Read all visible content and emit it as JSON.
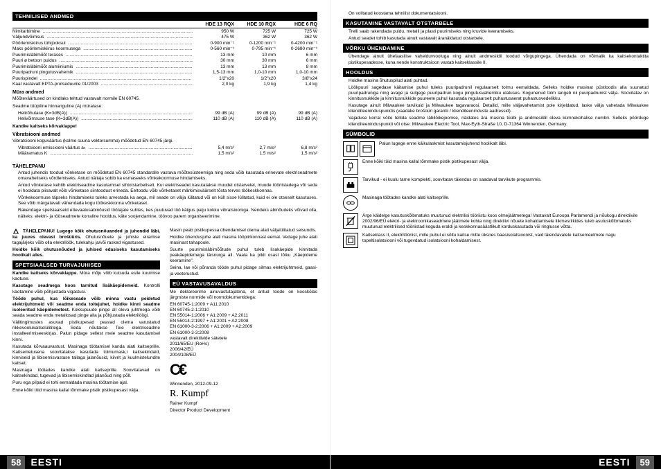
{
  "page_left_num": "58",
  "page_right_num": "59",
  "lang": "EESTI",
  "specs": {
    "header": "TEHNILISED ANDMED",
    "cols": [
      "HDE 13 RQX",
      "HDE 10 RQX",
      "HDE 6 RQ"
    ],
    "rows": [
      {
        "label": "Nimitarbimine",
        "vals": [
          "950 W",
          "725 W",
          "725 W"
        ]
      },
      {
        "label": "Väljundvõimsus",
        "vals": [
          "475 W",
          "362 W",
          "362 W"
        ]
      },
      {
        "label": "Pöörlemiskiirus tühijooksul",
        "vals": [
          "0-900 min⁻¹",
          "0-1200 min⁻¹",
          "0-4200 min⁻¹"
        ]
      },
      {
        "label": "Maks pöörlemiskiirus koormusega",
        "vals": [
          "0-560 min⁻¹",
          "0-795 min⁻¹",
          "0-2680 min⁻¹"
        ]
      },
      {
        "label": "Puurimisläbimõõt terases",
        "vals": [
          "13 mm",
          "10 mm",
          "6 mm"
        ]
      },
      {
        "label": "Puuri ø betoon puidus",
        "vals": [
          "30 mm",
          "30 mm",
          "6 mm"
        ]
      },
      {
        "label": "Puurimisläbimõõt alumiiniumis",
        "vals": [
          "13 mm",
          "13 mm",
          "8 mm"
        ]
      },
      {
        "label": "Puuripadruni pingutusvahemik",
        "vals": [
          "1,5-13 mm",
          "1,0-10 mm",
          "1,0-10 mm"
        ]
      },
      {
        "label": "Puurispindel",
        "vals": [
          "1/2\"x20",
          "1/2\"x20",
          "3/8\"x24"
        ]
      },
      {
        "label": "Kaal vastavalt EPTA-protseduurile 01/2003",
        "vals": [
          "2,0 kg",
          "1,9 kg",
          "1,4 kg"
        ]
      }
    ],
    "noise_heading": "Müra andmed",
    "noise_text1": "Mõõteväärtused on kindlaks tehtud vastavalt normile EN 60745.",
    "noise_text2": "Seadme tüüpiline hinnanguline (A) müratase:",
    "noise_rows": [
      {
        "label": "Helirõhutase (K=3dB(A))",
        "vals": [
          "99 dB (A)",
          "99 dB (A)",
          "99 dB (A)"
        ]
      },
      {
        "label": "Helivõimsuse tase (K=3dB(A))",
        "vals": [
          "110 dB (A)",
          "110 dB (A)",
          "110 dB (A)"
        ]
      }
    ],
    "earprotect": "Kandke kaitseks kõrvaklappе!",
    "vib_heading": "Vibratsiooni andmed",
    "vib_text": "Vibratsiooni koguväärtus (kolme suuna vektorsumma) mõõdetud EN 60745 järgi.",
    "vib_rows": [
      {
        "label": "Vibratsiooni emissiooni väärtus aₕ",
        "vals": [
          "5,4 m/s²",
          "2,7 m/s²",
          "6,8 m/s²"
        ]
      },
      {
        "label": "Määramatus K",
        "vals": [
          "1,5 m/s²",
          "1,5 m/s²",
          "1,5 m/s²"
        ]
      }
    ]
  },
  "tahelepanu_heading": "TÄHELEPANU",
  "tahelepanu_paras": [
    "Antud juhendis toodud võnketase on mõõdetud EN 60745 standardile vastava mõõtesüsteemiga ning seda võib kasutada erinevate elektriseadmete omavaheliseks võrdlemiseks. Antud näitaja sobib ka esmaseeks võnkekoormuse hindamiseks.",
    "Antud võnketase kehtib elektriseadme kasutamisel sihtotstarbeliselt. Kui elektriseadet kasutatakse muudel otstarvetel, muude tööriistadega või seda ei hooldata piisavalt võib võnketase siintoodust erineda. Eeltoodu võib võnketaset märkimisväärselt tõsta terves töökeskkonnas.",
    "Võnkekoormuse täpseks hindamiseks tuleks arvestada ka aega, mil seade on välja lülitatud või on küll sisse lülitatud, kuid ei ole otseselt kasutuses. See võib märgatavalt vähendada kogu töökeskkonna võnketaset.",
    "Rakendage spetsiaalseid ettevaatusabinõusid töötajate suhtes, kes puutuvad töö käigus palju kokku vibratsiooniga. Nendeks abinõudeks võivad olla, näiteks: elektri- ja tööseadmete korraline hooldus, käte soojendamine, töövoo parem organiseerimine."
  ],
  "leftcol": {
    "warning_heading_bold": "TÄHELEPANU! Lugege kõik ohutusnõuanded ja juhendid läbi, ka juures olevast brošüüris.",
    "warning_text": "Ohutusnõuete ja juhiste eiramise tagajärjeks võib olla elektrilöök, tulekahju ja/või rasked vigastused.",
    "warning_bold2": "Hoidke kõik ohutusnõuded ja juhised edasiseks kasutamiseks hoolikalt alles.",
    "section1": "SPETSIAALSED TURVAJUHISED",
    "p1b": "Kandke kaitseks kõrvaklappе.",
    "p1": "Müra mõju võib kutsuda esile kuulmise kaotuse.",
    "p2b": "Kasutage seadmega koos tarnitud lisäkäepidemeid.",
    "p2": "Kontrolli kaotamine võib põhjustada vigastusi.",
    "p3b": "Töõde puhul, kus lõikeseade võib minna vastu peidetud elektrijuhtmeid või seadme enda toitejuhet, hoidke kinni seadme isoleeritud käepidemetest.",
    "p3": "Kokkupuude pinge all oleva juhtmega võib seada seadme enda metallosad pinge alla ja põhjustada elektrilöögi.",
    "p4": "Välitingimustes asuvad pistikupesad peavad olema varustatud rikkevoolukaitselülititega. Seda nõutakse Teie elektriseadme installeerimiseeskirjas. Palun pidage sellest meie seadme kasutamisel kinni.",
    "p5": "Kasutada kõrvaauvastust. Masinaga töötamisel kanda alati kaitseprille. Kaitseriietusena soovitatakse kasutada tolmumask,i kaitsekindaid, kinniseid ja libisemisvastase tallaga jalanõusid, kiivrit ja kuulmistelundite kaitset.",
    "p6": "Masinaga töötades kandke alati kaitseprille. Soovitatavad on kaitsekindad, tugevad ja libisemiskindlad jalanõud ning põll.",
    "p7": "Puru ega pilpaid ei tohi eemaldada masina töötamise ajal.",
    "p8": "Enne kõiki töid masina kallal tõmmake pistik pistikupesast välja."
  },
  "midcol": {
    "p1": "Masin peab pistikupessa ühendamisel olema alati väljalülitatud seisundis.",
    "p2": "Hoidke ühendusjuhe alati masina tööpiirkonnast eemal. Vedage juhe alati masinast tahapoole.",
    "p3": "Suurte puurimisläbimõõtude puhul tuleb lisakäepide kinnitada peakäepidemega täisnurga all. Vaata ka pildi osast lõiku „Käepideme keeramine\".",
    "p4": "Seina, lae või põranda tööde puhul pidage silmas elektrijuhtmeid, gaasi- ja veetorustud.",
    "section": "EÜ VASTAVUSAVALDUS",
    "decl": "Me deklareerime ainuvastutajatena, et antud toode on kooskõlas järgmiste normide või normdokumentidega:",
    "norms": "EN 60745-1:2009 + A11:2010\nEN 60745-2-1:2010\nEN 55014-1:2006 + A1:2009 + A2:2011\nEN 55014-2:1997 + A1:2001 + A2:2008\nEN 61000-3-2:2006 + A1:2009 + A2:2009\nEN 61000-3-3:2008\nvastavalt direktiivide sätetele\n2011/65/EU (RoHs)\n2006/42/EÜ\n2004/108/EÜ",
    "place_date": "Winnenden, 2012-09-12",
    "name": "Rainer Kumpf",
    "title": "Director Product Development"
  },
  "rightpage": {
    "p0": "On volitatud koostama tehnilist dokumentatsiooni.",
    "section1": "KASUTAMINE VASTAVALT OTSTARBELE",
    "p1": "Trelli saab rakendada puidu, metalli ja plasti puurimiseks ning kruvide keeramiseks.",
    "p2": "Antud seadet tohib kasutada ainult vastavalt äranäidatud otstarbele.",
    "section2": "VÕRKU ÜHENDAMINE",
    "p3": "Ühendage ainult ühefaasilise vahelduvvooluga ning ainult andmesildil toodud võrgupingega. Ühendada on võimalik ka kaitsekontaktita pistikupesadesse, kuna nende konstruktsioon vastab kaitseklassile II.",
    "section3": "HOOLDUS",
    "p4": "Hoidke masina õhutuspilud alati puhtad.",
    "p5": "Löökpuuri sagedase käitamise puhul tuleks puuripadrunil regulaarselt tolmu eemaldada. Selleks hoidke masinat püstloodis alla suunatud puuripadruniga ning avage ja sulgege puuripadrun kogu pingutusvahemiku ulatuses. Kogunenud tolm langeb nii puurpadrunist välja. Soovitatav on kinnitusnukkide ja kinnitusnukkide puureete puhul kasutada regulaarselt puhastusaerat puhastusvedelikku.",
    "p6": "Kasutage ainult Milwaukee tarvikuid ja Milwaukee tagavaraosi. Detailid, mille väljavahetamist pole kirjeldatud, laske välja vahetada Milwaukee klienditeeninduspunktis (vaadake brošüüri garantii / klienditeeninduste aadressid).",
    "p7": "Vajaduse korral võite tellida seadme läbilõikejoonise, näidates ära masina tüübi ja andmesildil oleva kümnekohalise numbri. Selleks pöörduge klienditeeninduspunkti või otse: Milwaukee Electric Tool, Max-Eyth-Straße 10, D-71364 Winnenden, Germany.",
    "section4": "SÜMBOLID",
    "symbols": [
      {
        "text": "Palun lugege enne käikulaskmist kasutamisjuhend hoolikalt läbi.",
        "icon": "book"
      },
      {
        "text": "Enne kõiki töid masina kallal tõmmake pistik pistikupesast välja.",
        "icon": "plug"
      },
      {
        "text": "Tarvikud - ei kuulu tarne komplekti, soovitatav täiendus on saadaval tarvikute programmis.",
        "icon": "accessory"
      },
      {
        "text": "Masinaga töötades kandke alati kaitseprille.",
        "icon": "goggles"
      },
      {
        "text": "Ärge käidelge kasutuskõlbmatuks muutunud elektrilisi tööriistu koos olmejäätmetega! Vastavalt Euroopa Parlamendi ja nõukogu direktiivile 2002/96/EÜ elektri- ja elektroonikaseadmete jäätmete kohta ning direktiivi nõuete kohaldamisele liikmesriikides tuleb asutuskõlbmatuks muutunud elektrilised tööriistad koguda eraldi ja keskkonnasäästlikult korduskasutada või ringlusse võtta.",
        "icon": "bin"
      },
      {
        "text": "Kaitseklass II, elektritööriist, mille puhul ei sõltu kaitse mitte üksnes baasisolatsioonist, vaid täiendavatele kaitsemeetmete nagu topeltisolatsiooni või tugevdatud isolatsiooni kohaldamisest.",
        "icon": "class2"
      }
    ]
  }
}
